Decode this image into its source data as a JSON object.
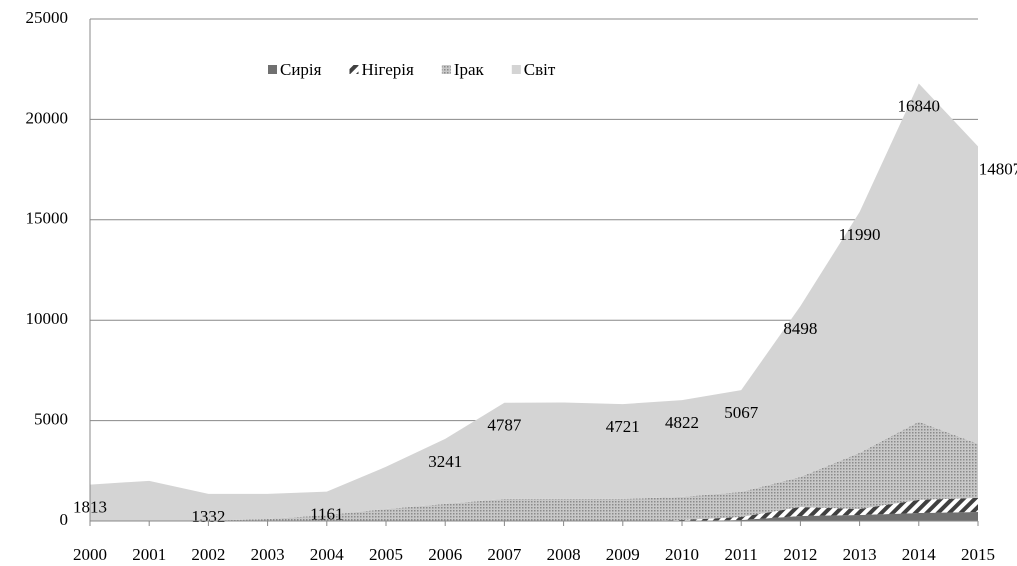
{
  "chart_data": {
    "type": "area",
    "stacked": true,
    "x": [
      2000,
      2001,
      2002,
      2003,
      2004,
      2005,
      2006,
      2007,
      2008,
      2009,
      2010,
      2011,
      2012,
      2013,
      2014,
      2015
    ],
    "series": [
      {
        "name": "Сирія",
        "color": "#707070",
        "pattern": "solid",
        "values": [
          0,
          0,
          0,
          0,
          0,
          0,
          0,
          0,
          0,
          0,
          0,
          50,
          250,
          300,
          400,
          450
        ]
      },
      {
        "name": "Нігерія",
        "color": "#404040",
        "pattern": "stripes",
        "values": [
          0,
          0,
          0,
          0,
          0,
          0,
          0,
          0,
          0,
          0,
          50,
          150,
          450,
          300,
          650,
          700
        ]
      },
      {
        "name": "Ірак",
        "color": "#a8a8a8",
        "pattern": "dots",
        "values": [
          0,
          0,
          20,
          100,
          300,
          600,
          850,
          1100,
          1100,
          1100,
          1150,
          1250,
          1500,
          2800,
          3900,
          2700
        ]
      },
      {
        "name": "Світ",
        "color": "#d4d4d4",
        "pattern": "solid",
        "values": [
          1813,
          2000,
          1332,
          1250,
          1161,
          2100,
          3241,
          4787,
          4800,
          4721,
          4822,
          5067,
          8498,
          11990,
          16840,
          14807
        ],
        "value_labels": [
          "1813",
          null,
          "1332",
          null,
          "1161",
          null,
          "3241",
          "4787",
          null,
          "4721",
          "4822",
          "5067",
          "8498",
          "11990",
          "16840",
          "14807"
        ]
      }
    ],
    "xlim": [
      2000,
      2015
    ],
    "xticks": [
      2000,
      2001,
      2002,
      2003,
      2004,
      2005,
      2006,
      2007,
      2008,
      2009,
      2010,
      2011,
      2012,
      2013,
      2014,
      2015
    ],
    "ylim": [
      0,
      25000
    ],
    "yticks": [
      0,
      5000,
      10000,
      15000,
      20000,
      25000
    ],
    "grid": true,
    "legend": "top"
  }
}
